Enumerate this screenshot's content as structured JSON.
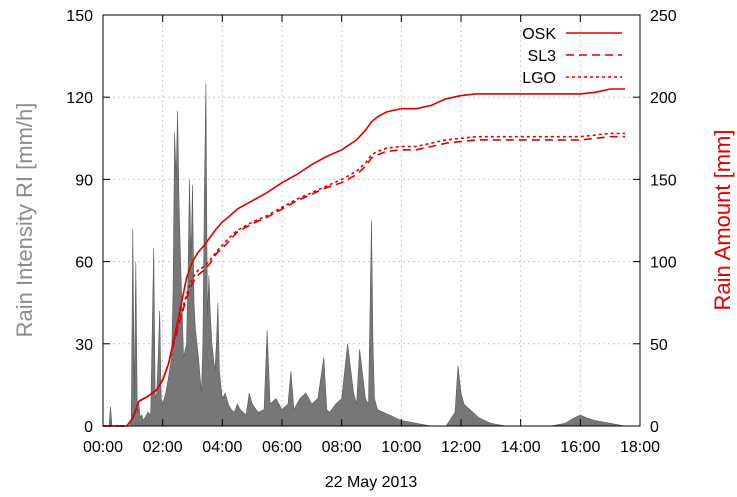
{
  "chart_data": {
    "type": "area",
    "xlabel": "22 May 2013",
    "ylabel": "Rain Intensity RI [mm/h]",
    "y2label": "Rain Amount [mm]",
    "xlim": [
      0,
      18
    ],
    "ylim": [
      0,
      150
    ],
    "y2lim": [
      0,
      250
    ],
    "x_ticks": [
      "00:00",
      "02:00",
      "04:00",
      "06:00",
      "08:00",
      "10:00",
      "12:00",
      "14:00",
      "16:00",
      "18:00"
    ],
    "y_ticks": [
      "0",
      "30",
      "60",
      "90",
      "120",
      "150"
    ],
    "y2_ticks": [
      "0",
      "50",
      "100",
      "150",
      "200",
      "250"
    ],
    "grid": true,
    "legend_position": "top-right",
    "colors": {
      "intensity": "#777777",
      "amount": "#e00000",
      "left_label": "#8c8c8c",
      "right_label": "#e00000"
    },
    "intensity": {
      "x": [
        0.0,
        0.2,
        0.25,
        0.3,
        0.9,
        0.95,
        1.0,
        1.05,
        1.1,
        1.15,
        1.2,
        1.25,
        1.3,
        1.35,
        1.4,
        1.5,
        1.6,
        1.7,
        1.75,
        1.8,
        1.85,
        1.9,
        1.95,
        2.0,
        2.1,
        2.2,
        2.3,
        2.35,
        2.4,
        2.45,
        2.5,
        2.55,
        2.6,
        2.7,
        2.8,
        2.85,
        2.9,
        2.95,
        3.0,
        3.05,
        3.1,
        3.2,
        3.3,
        3.35,
        3.4,
        3.45,
        3.5,
        3.55,
        3.6,
        3.65,
        3.7,
        3.75,
        3.8,
        3.85,
        3.9,
        3.95,
        4.0,
        4.1,
        4.2,
        4.3,
        4.4,
        4.5,
        4.6,
        4.7,
        4.8,
        4.9,
        5.0,
        5.2,
        5.4,
        5.5,
        5.6,
        5.8,
        6.0,
        6.2,
        6.3,
        6.4,
        6.6,
        6.8,
        7.0,
        7.2,
        7.4,
        7.5,
        7.6,
        7.8,
        8.0,
        8.2,
        8.4,
        8.5,
        8.6,
        8.8,
        8.9,
        9.0,
        9.05,
        9.1,
        9.2,
        9.4,
        9.6,
        9.8,
        10.0,
        10.5,
        11.0,
        11.5,
        11.8,
        11.9,
        12.0,
        12.1,
        12.3,
        12.6,
        13.0,
        13.5,
        14.0,
        14.5,
        15.0,
        15.5,
        15.8,
        16.0,
        16.2,
        16.5,
        17.0,
        17.5,
        17.8
      ],
      "y": [
        0,
        0,
        7,
        0,
        0,
        3,
        72,
        10,
        60,
        5,
        8,
        3,
        4,
        2,
        3,
        5,
        4,
        65,
        10,
        12,
        25,
        42,
        10,
        8,
        12,
        18,
        25,
        50,
        107,
        90,
        115,
        80,
        60,
        25,
        30,
        55,
        90,
        60,
        88,
        45,
        35,
        25,
        12,
        30,
        85,
        125,
        40,
        55,
        40,
        30,
        25,
        20,
        30,
        45,
        20,
        15,
        10,
        12,
        8,
        6,
        5,
        8,
        6,
        5,
        4,
        12,
        8,
        5,
        6,
        35,
        8,
        10,
        6,
        8,
        20,
        6,
        10,
        12,
        8,
        10,
        25,
        6,
        5,
        8,
        10,
        30,
        12,
        8,
        28,
        10,
        8,
        75,
        30,
        10,
        6,
        5,
        4,
        3,
        2,
        1,
        0,
        0,
        5,
        22,
        12,
        8,
        6,
        3,
        1,
        0,
        0,
        0,
        0,
        1,
        3,
        4,
        3,
        2,
        1,
        0,
        0
      ]
    },
    "series": [
      {
        "name": "OSK",
        "dash": "",
        "x": [
          0,
          0.8,
          1.0,
          1.2,
          1.5,
          1.8,
          2.0,
          2.2,
          2.4,
          2.6,
          2.8,
          3.0,
          3.2,
          3.4,
          3.6,
          3.8,
          4.0,
          4.2,
          4.5,
          5.0,
          5.5,
          6.0,
          6.5,
          7.0,
          7.5,
          8.0,
          8.5,
          8.8,
          9.0,
          9.2,
          9.5,
          10.0,
          10.5,
          11.0,
          11.5,
          12.0,
          12.5,
          13.0,
          14.0,
          15.0,
          16.0,
          16.5,
          17.0,
          17.5
        ],
        "y": [
          0,
          0,
          5,
          15,
          18,
          22,
          28,
          38,
          55,
          72,
          90,
          100,
          106,
          110,
          115,
          120,
          124,
          127,
          132,
          137,
          142,
          148,
          153,
          159,
          164,
          168,
          174,
          180,
          185,
          188,
          191,
          193,
          193,
          195,
          199,
          201,
          202,
          202,
          202,
          202,
          202,
          203,
          205,
          205
        ]
      },
      {
        "name": "SL3",
        "dash": "8,5",
        "x": [
          0,
          0.8,
          1.0,
          1.2,
          1.5,
          1.8,
          2.0,
          2.2,
          2.4,
          2.6,
          2.8,
          3.0,
          3.2,
          3.4,
          3.6,
          3.8,
          4.0,
          4.2,
          4.5,
          5.0,
          5.5,
          6.0,
          6.5,
          7.0,
          7.5,
          8.0,
          8.5,
          8.8,
          9.0,
          9.2,
          9.5,
          10.0,
          10.5,
          11.0,
          11.5,
          12.0,
          12.5,
          13.0,
          14.0,
          15.0,
          16.0,
          16.5,
          17.0,
          17.5
        ],
        "y": [
          0,
          0,
          5,
          15,
          18,
          22,
          28,
          38,
          52,
          65,
          78,
          87,
          92,
          95,
          99,
          105,
          108,
          112,
          118,
          123,
          127,
          132,
          137,
          141,
          145,
          148,
          153,
          158,
          163,
          165,
          167,
          168,
          168,
          170,
          172,
          173,
          174,
          174,
          174,
          174,
          174,
          175,
          176,
          176
        ]
      },
      {
        "name": "LGO",
        "dash": "3,3",
        "x": [
          0,
          0.8,
          1.0,
          1.2,
          1.5,
          1.8,
          2.0,
          2.2,
          2.4,
          2.6,
          2.8,
          3.0,
          3.2,
          3.4,
          3.6,
          3.8,
          4.0,
          4.2,
          4.5,
          5.0,
          5.5,
          6.0,
          6.5,
          7.0,
          7.5,
          8.0,
          8.5,
          8.8,
          9.0,
          9.2,
          9.5,
          10.0,
          10.5,
          11.0,
          11.5,
          12.0,
          12.5,
          13.0,
          14.0,
          15.0,
          16.0,
          16.5,
          17.0,
          17.5
        ],
        "y": [
          0,
          0,
          5,
          15,
          18,
          22,
          28,
          38,
          53,
          67,
          80,
          90,
          95,
          97,
          101,
          106,
          110,
          114,
          119,
          124,
          128,
          133,
          138,
          142,
          146,
          150,
          155,
          160,
          165,
          167,
          169,
          170,
          170,
          172,
          174,
          175,
          176,
          176,
          176,
          176,
          176,
          177,
          178,
          178
        ]
      }
    ]
  }
}
